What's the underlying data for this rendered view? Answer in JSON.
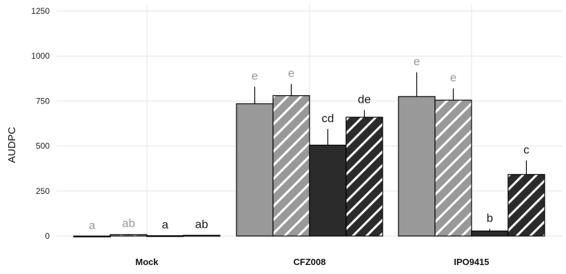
{
  "chart_data": {
    "type": "bar",
    "title": "",
    "xlabel": "",
    "ylabel": "AUDPC",
    "ylim": [
      0,
      1250
    ],
    "yticks": [
      0,
      250,
      500,
      750,
      1000,
      1250
    ],
    "grid": true,
    "legend": "none",
    "categories": [
      "Mock",
      "CFZ008",
      "IPO9415"
    ],
    "series": [
      {
        "fill": "#999999",
        "pattern": "solid",
        "sig_color": "#999999",
        "values": [
          0,
          735,
          775
        ],
        "errors": [
          0,
          95,
          135
        ],
        "sig": [
          "a",
          "e",
          "e"
        ]
      },
      {
        "fill": "#999999",
        "pattern": "hatch",
        "sig_color": "#999999",
        "values": [
          8,
          780,
          755
        ],
        "errors": [
          3,
          65,
          65
        ],
        "sig": [
          "ab",
          "e",
          "e"
        ]
      },
      {
        "fill": "#2b2b2b",
        "pattern": "solid",
        "sig_color": "#1a1a1a",
        "values": [
          2,
          505,
          28
        ],
        "errors": [
          2,
          90,
          12
        ],
        "sig": [
          "a",
          "cd",
          "b"
        ]
      },
      {
        "fill": "#2b2b2b",
        "pattern": "hatch",
        "sig_color": "#1a1a1a",
        "values": [
          4,
          660,
          342
        ],
        "errors": [
          2,
          40,
          78
        ],
        "sig": [
          "ab",
          "de",
          "c"
        ]
      }
    ]
  }
}
